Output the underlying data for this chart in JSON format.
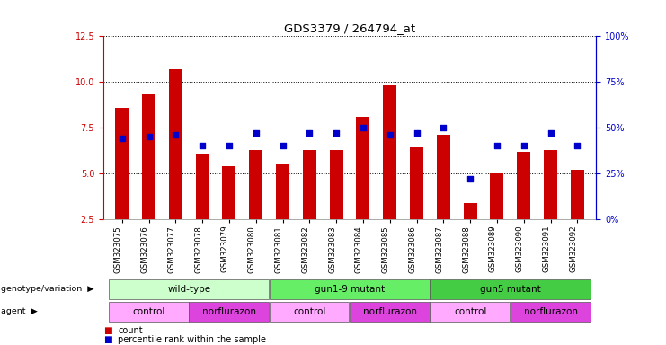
{
  "title": "GDS3379 / 264794_at",
  "samples": [
    "GSM323075",
    "GSM323076",
    "GSM323077",
    "GSM323078",
    "GSM323079",
    "GSM323080",
    "GSM323081",
    "GSM323082",
    "GSM323083",
    "GSM323084",
    "GSM323085",
    "GSM323086",
    "GSM323087",
    "GSM323088",
    "GSM323089",
    "GSM323090",
    "GSM323091",
    "GSM323092"
  ],
  "counts": [
    8.6,
    9.3,
    10.7,
    6.1,
    5.4,
    6.3,
    5.5,
    6.3,
    6.3,
    8.1,
    9.8,
    6.4,
    7.1,
    3.4,
    5.0,
    6.2,
    6.3,
    5.2
  ],
  "percentiles": [
    44,
    45,
    46,
    40,
    40,
    47,
    40,
    47,
    47,
    50,
    46,
    47,
    50,
    22,
    40,
    40,
    47,
    40
  ],
  "ylim_left": [
    2.5,
    12.5
  ],
  "ylim_right": [
    0,
    100
  ],
  "yticks_left": [
    2.5,
    5.0,
    7.5,
    10.0,
    12.5
  ],
  "yticks_right": [
    0,
    25,
    50,
    75,
    100
  ],
  "bar_color": "#CC0000",
  "dot_color": "#0000CC",
  "background_color": "#ffffff",
  "plot_bg_color": "#ffffff",
  "genotype_groups": [
    {
      "label": "wild-type",
      "start": 0,
      "end": 5,
      "color": "#ccffcc"
    },
    {
      "label": "gun1-9 mutant",
      "start": 6,
      "end": 11,
      "color": "#66ee66"
    },
    {
      "label": "gun5 mutant",
      "start": 12,
      "end": 17,
      "color": "#44cc44"
    }
  ],
  "agent_groups": [
    {
      "label": "control",
      "start": 0,
      "end": 2,
      "color": "#ffaaff"
    },
    {
      "label": "norflurazon",
      "start": 3,
      "end": 5,
      "color": "#dd44dd"
    },
    {
      "label": "control",
      "start": 6,
      "end": 8,
      "color": "#ffaaff"
    },
    {
      "label": "norflurazon",
      "start": 9,
      "end": 11,
      "color": "#dd44dd"
    },
    {
      "label": "control",
      "start": 12,
      "end": 14,
      "color": "#ffaaff"
    },
    {
      "label": "norflurazon",
      "start": 15,
      "end": 17,
      "color": "#dd44dd"
    }
  ],
  "legend_count_label": "count",
  "legend_pct_label": "percentile rank within the sample",
  "genotype_row_label": "genotype/variation",
  "agent_row_label": "agent"
}
